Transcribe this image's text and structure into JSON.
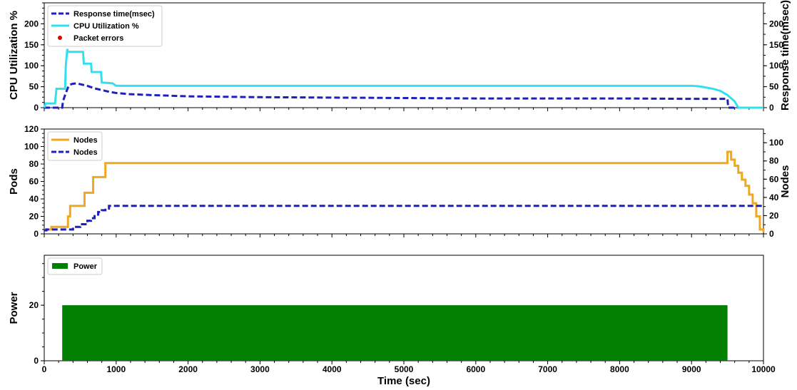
{
  "chart_data": [
    {
      "type": "line",
      "xlim": [
        0,
        10000
      ],
      "ylabel": "CPU Utilization %",
      "ylabel_right": "Response time(msec)",
      "ylim": [
        0,
        250
      ],
      "yticks": [
        0,
        50,
        100,
        150,
        200
      ],
      "ylim_right": [
        0,
        250
      ],
      "yticks_right": [
        0,
        50,
        100,
        150,
        200
      ],
      "legend_position": "top-left",
      "series": [
        {
          "name": "Response time(msec)",
          "style": "dashed",
          "color": "#1f1fbf",
          "axis": "right",
          "x": [
            0,
            250,
            260,
            300,
            330,
            360,
            400,
            450,
            500,
            600,
            700,
            800,
            900,
            1000,
            1200,
            1500,
            2000,
            3000,
            4000,
            5000,
            6000,
            7000,
            8000,
            9000,
            9500,
            9510,
            10000
          ],
          "y": [
            0,
            0,
            15,
            35,
            48,
            55,
            57,
            58,
            56,
            52,
            46,
            42,
            38,
            35,
            32,
            30,
            27,
            25,
            24,
            23,
            22,
            22,
            22,
            21,
            21,
            0,
            0
          ]
        },
        {
          "name": "CPU Utilization %",
          "style": "solid",
          "color": "#33e0f0",
          "axis": "left",
          "x": [
            0,
            20,
            50,
            150,
            170,
            290,
            300,
            320,
            330,
            540,
            550,
            650,
            660,
            790,
            800,
            950,
            1000,
            9000,
            9100,
            9200,
            9300,
            9400,
            9500,
            9600,
            9650,
            10000
          ],
          "y": [
            0,
            10,
            10,
            10,
            45,
            45,
            100,
            140,
            133,
            133,
            105,
            105,
            85,
            85,
            60,
            58,
            52,
            52,
            51,
            48,
            45,
            40,
            30,
            15,
            0,
            0
          ]
        },
        {
          "name": "Packet errors",
          "style": "markers",
          "color": "#e00000",
          "axis": "left",
          "x": [],
          "y": []
        }
      ]
    },
    {
      "type": "line",
      "xlim": [
        0,
        10000
      ],
      "ylabel": "Pods",
      "ylabel_right": "Nodes",
      "ylim": [
        0,
        120
      ],
      "yticks": [
        0,
        20,
        40,
        60,
        80,
        100,
        120
      ],
      "ylim_right": [
        0,
        115
      ],
      "yticks_right": [
        0,
        20,
        40,
        60,
        80,
        100
      ],
      "legend_position": "top-left",
      "series": [
        {
          "name": "Nodes",
          "style": "solid",
          "color": "#f0a820",
          "axis": "left",
          "x": [
            0,
            100,
            300,
            330,
            360,
            500,
            560,
            680,
            850,
            9500,
            9550,
            9600,
            9650,
            9700,
            9750,
            9800,
            9850,
            9900,
            9950,
            10000
          ],
          "y": [
            5,
            8,
            8,
            20,
            32,
            32,
            47,
            65,
            81,
            94,
            85,
            78,
            70,
            62,
            55,
            45,
            35,
            20,
            5,
            2
          ],
          "step": true
        },
        {
          "name": "Nodes",
          "style": "dashed",
          "color": "#1f1fbf",
          "axis": "left",
          "x": [
            0,
            30,
            350,
            400,
            500,
            600,
            650,
            700,
            750,
            800,
            850,
            900,
            10000
          ],
          "y": [
            4,
            5,
            5,
            8,
            11,
            15,
            18,
            22,
            25,
            27,
            29,
            32,
            32
          ],
          "step": true
        }
      ]
    },
    {
      "type": "bar",
      "xlim": [
        0,
        10000
      ],
      "xlabel": "Time (sec)",
      "xticks": [
        0,
        1000,
        2000,
        3000,
        4000,
        5000,
        6000,
        7000,
        8000,
        9000,
        10000
      ],
      "ylabel": "Power",
      "ylim": [
        0,
        38
      ],
      "yticks": [
        0,
        20
      ],
      "legend_position": "top-left",
      "series": [
        {
          "name": "Power",
          "color": "#007f00",
          "x_start": 250,
          "x_end": 9500,
          "value": 20
        }
      ]
    }
  ]
}
